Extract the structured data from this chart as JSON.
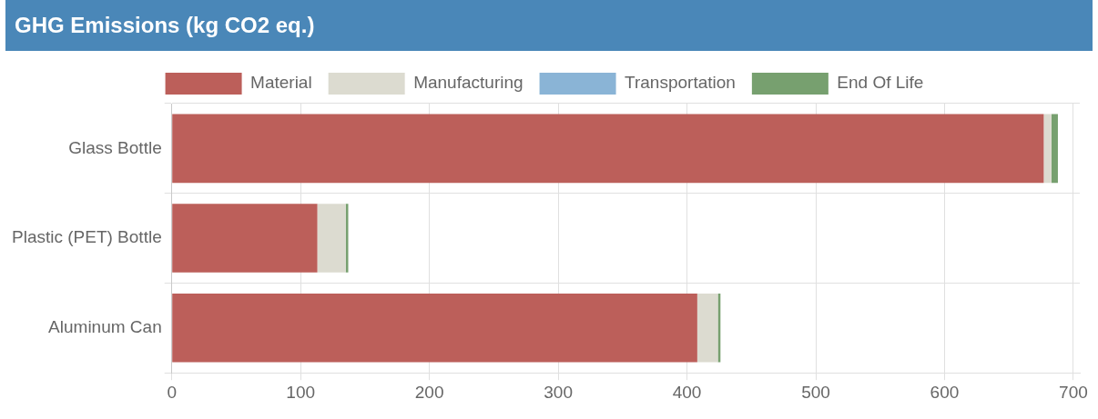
{
  "chart_data": {
    "type": "bar",
    "title": "GHG Emissions (kg CO2 eq.)",
    "orientation": "horizontal",
    "stacked": true,
    "categories": [
      "Glass Bottle",
      "Plastic (PET) Bottle",
      "Aluminum Can"
    ],
    "series": [
      {
        "name": "Material",
        "color": "#bc5f5a",
        "values": [
          677,
          113,
          408
        ]
      },
      {
        "name": "Manufacturing",
        "color": "#dcdbd0",
        "values": [
          6,
          22,
          16
        ]
      },
      {
        "name": "Transportation",
        "color": "#8ab4d6",
        "values": [
          0,
          0,
          0
        ]
      },
      {
        "name": "End Of Life",
        "color": "#77a06f",
        "values": [
          5,
          2,
          2
        ]
      }
    ],
    "xlim": [
      0,
      705
    ],
    "xticks": [
      0,
      100,
      200,
      300,
      400,
      500,
      600,
      700
    ],
    "grid": true,
    "legend": "top"
  }
}
